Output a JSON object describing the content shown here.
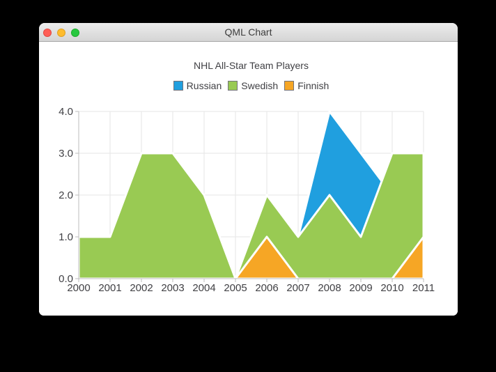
{
  "window": {
    "title": "QML Chart",
    "controls": {
      "close_color": "#ff5f57",
      "minimize_color": "#febc2e",
      "zoom_color": "#28c840"
    }
  },
  "chart_data": {
    "type": "area",
    "title": "NHL All-Star Team Players",
    "x": [
      2000,
      2001,
      2002,
      2003,
      2004,
      2005,
      2006,
      2007,
      2008,
      2009,
      2010,
      2011
    ],
    "ylim": [
      0,
      4
    ],
    "yticks": [
      "0.0",
      "1.0",
      "2.0",
      "3.0",
      "4.0"
    ],
    "grid": true,
    "legend_position": "top",
    "area_outline": "#ffffff",
    "series": [
      {
        "name": "Russian",
        "color": "#209fdf",
        "values": [
          1,
          1,
          1,
          1,
          1,
          0,
          1,
          1,
          4,
          3,
          2,
          1
        ]
      },
      {
        "name": "Swedish",
        "color": "#99ca53",
        "values": [
          1,
          1,
          3,
          3,
          2,
          0,
          2,
          1,
          2,
          1,
          3,
          3
        ]
      },
      {
        "name": "Finnish",
        "color": "#f6a625",
        "values": [
          0,
          0,
          0,
          0,
          0,
          0,
          1,
          0,
          0,
          0,
          0,
          1
        ]
      }
    ]
  }
}
